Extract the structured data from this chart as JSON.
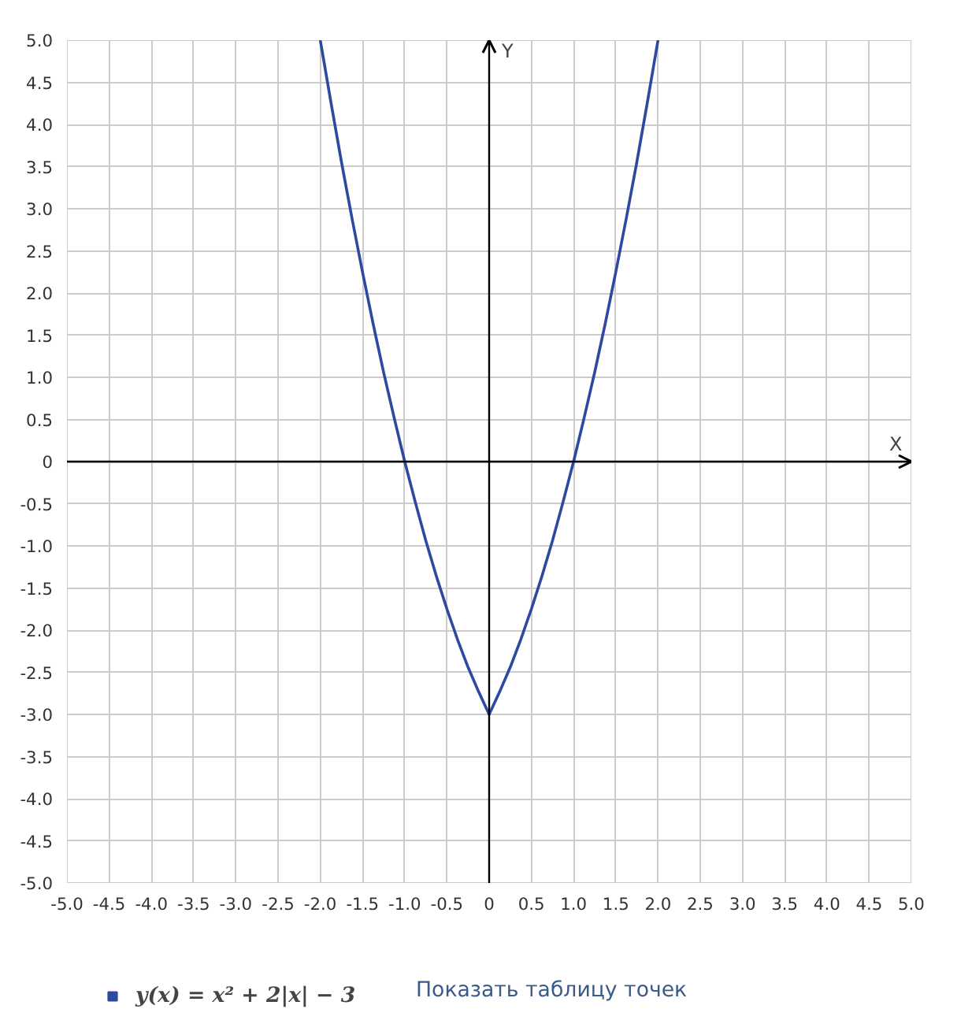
{
  "chart_data": {
    "type": "line",
    "xlabel": "X",
    "ylabel": "Y",
    "xlim": [
      -5,
      5
    ],
    "ylim": [
      -5,
      5
    ],
    "xticks": [
      {
        "value": -5,
        "label": "-5.0"
      },
      {
        "value": -4.5,
        "label": "-4.5"
      },
      {
        "value": -4,
        "label": "-4.0"
      },
      {
        "value": -3.5,
        "label": "-3.5"
      },
      {
        "value": -3,
        "label": "-3.0"
      },
      {
        "value": -2.5,
        "label": "-2.5"
      },
      {
        "value": -2,
        "label": "-2.0"
      },
      {
        "value": -1.5,
        "label": "-1.5"
      },
      {
        "value": -1,
        "label": "-1.0"
      },
      {
        "value": -0.5,
        "label": "-0.5"
      },
      0,
      {
        "value": 0.5,
        "label": "0.5"
      },
      {
        "value": 1,
        "label": "1.0"
      },
      {
        "value": 1.5,
        "label": "1.5"
      },
      {
        "value": 2,
        "label": "2.0"
      },
      {
        "value": 2.5,
        "label": "2.5"
      },
      {
        "value": 3,
        "label": "3.0"
      },
      {
        "value": 3.5,
        "label": "3.5"
      },
      {
        "value": 4,
        "label": "4.0"
      },
      {
        "value": 4.5,
        "label": "4.5"
      },
      {
        "value": 5,
        "label": "5.0"
      }
    ],
    "yticks": [
      {
        "value": -5,
        "label": "-5.0"
      },
      {
        "value": -4.5,
        "label": "-4.5"
      },
      {
        "value": -4,
        "label": "-4.0"
      },
      {
        "value": -3.5,
        "label": "-3.5"
      },
      {
        "value": -3,
        "label": "-3.0"
      },
      {
        "value": -2.5,
        "label": "-2.5"
      },
      {
        "value": -2,
        "label": "-2.0"
      },
      {
        "value": -1.5,
        "label": "-1.5"
      },
      {
        "value": -1,
        "label": "-1.0"
      },
      {
        "value": -0.5,
        "label": "-0.5"
      },
      0,
      {
        "value": 0.5,
        "label": "0.5"
      },
      {
        "value": 1,
        "label": "1.0"
      },
      {
        "value": 1.5,
        "label": "1.5"
      },
      {
        "value": 2,
        "label": "2.0"
      },
      {
        "value": 2.5,
        "label": "2.5"
      },
      {
        "value": 3,
        "label": "3.0"
      },
      {
        "value": 3.5,
        "label": "3.5"
      },
      {
        "value": 4,
        "label": "4.0"
      },
      {
        "value": 4.5,
        "label": "4.5"
      },
      {
        "value": 5,
        "label": "5.0"
      }
    ],
    "grid": true,
    "legend": "bottom left",
    "annotations": [
      "Показать таблицу точек"
    ],
    "series": [
      {
        "name": "y(x) = x² + 2|x| − 3",
        "color": "#2b4aa0",
        "x": [
          -2,
          -1.875,
          -1.75,
          -1.625,
          -1.5,
          -1.375,
          -1.25,
          -1.125,
          -1,
          -0.875,
          -0.75,
          -0.625,
          -0.5,
          -0.375,
          -0.25,
          -0.125,
          0,
          0.125,
          0.25,
          0.375,
          0.5,
          0.625,
          0.75,
          0.875,
          1,
          1.125,
          1.25,
          1.375,
          1.5,
          1.625,
          1.75,
          1.875,
          2
        ],
        "values": [
          5,
          4.27,
          3.56,
          2.89,
          2.25,
          1.64,
          1.06,
          0.52,
          0,
          -0.48,
          -0.94,
          -1.36,
          -1.75,
          -2.11,
          -2.44,
          -2.73,
          -3,
          -2.73,
          -2.44,
          -2.11,
          -1.75,
          -1.36,
          -0.94,
          -0.48,
          0,
          0.52,
          1.06,
          1.64,
          2.25,
          2.89,
          3.56,
          4.27,
          5
        ]
      }
    ]
  }
}
